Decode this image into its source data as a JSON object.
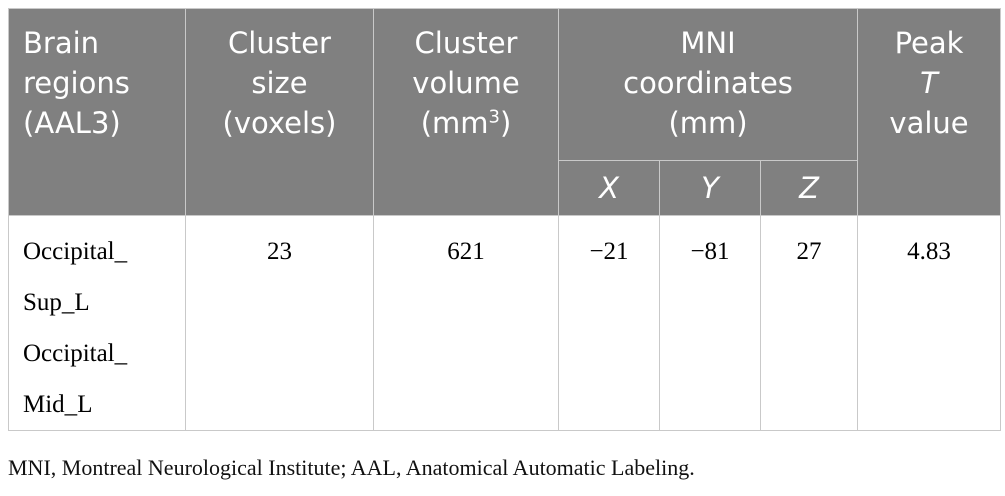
{
  "table": {
    "header": {
      "brain_regions": "Brain regions (AAL3)",
      "cluster_size": "Cluster size (voxels)",
      "cluster_volume": {
        "text": "Cluster volume (mm",
        "sup": "3",
        "close": ")"
      },
      "mni": {
        "text": "MNI coordinates (mm)",
        "axes": [
          "X",
          "Y",
          "Z"
        ]
      },
      "peak": {
        "text": "Peak",
        "italic": "T",
        "after": "value"
      }
    },
    "rows": [
      {
        "regions": [
          "Occipital_Sup_L",
          "Occipital_Mid_L"
        ],
        "cells": [
          "23",
          "621",
          "−21",
          "−81",
          "27",
          "4.83"
        ]
      }
    ]
  },
  "footnote": "MNI, Montreal Neurological Institute; AAL, Anatomical Automatic Labeling."
}
